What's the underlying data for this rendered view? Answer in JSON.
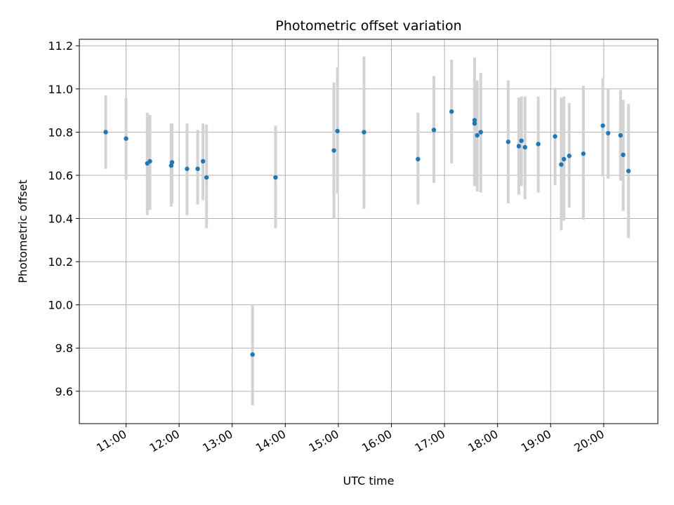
{
  "chart_data": {
    "type": "scatter",
    "title": "Photometric offset variation",
    "xlabel": "UTC time",
    "ylabel": "Photometric offset",
    "grid": true,
    "x_tick_labels": [
      "11:00",
      "12:00",
      "13:00",
      "14:00",
      "15:00",
      "16:00",
      "17:00",
      "18:00",
      "19:00",
      "20:00"
    ],
    "x_tick_hours": [
      11,
      12,
      13,
      14,
      15,
      16,
      17,
      18,
      19,
      20
    ],
    "xlim_hours": [
      10.12,
      21.02
    ],
    "y_ticks": [
      9.6,
      9.8,
      10.0,
      10.2,
      10.4,
      10.6,
      10.8,
      11.0,
      11.2
    ],
    "y_tick_labels": [
      "9.6",
      "9.8",
      "10.0",
      "10.2",
      "10.4",
      "10.6",
      "10.8",
      "11.0",
      "11.2"
    ],
    "ylim": [
      9.45,
      11.23
    ],
    "colors": {
      "points": "#1f77b4",
      "errorbars": "#d3d3d3",
      "grid": "#b0b0b0"
    },
    "points": [
      {
        "t": "10:37",
        "y": 10.8,
        "lo": 10.63,
        "hi": 10.97
      },
      {
        "t": "11:00",
        "y": 10.77,
        "lo": 10.58,
        "hi": 10.96
      },
      {
        "t": "11:24",
        "y": 10.655,
        "lo": 10.415,
        "hi": 10.89
      },
      {
        "t": "11:27",
        "y": 10.665,
        "lo": 10.44,
        "hi": 10.88
      },
      {
        "t": "11:51",
        "y": 10.645,
        "lo": 10.455,
        "hi": 10.84
      },
      {
        "t": "11:52",
        "y": 10.66,
        "lo": 10.47,
        "hi": 10.84
      },
      {
        "t": "12:09",
        "y": 10.63,
        "lo": 10.415,
        "hi": 10.84
      },
      {
        "t": "12:21",
        "y": 10.63,
        "lo": 10.465,
        "hi": 10.81
      },
      {
        "t": "12:27",
        "y": 10.665,
        "lo": 10.485,
        "hi": 10.84
      },
      {
        "t": "12:31",
        "y": 10.59,
        "lo": 10.355,
        "hi": 10.835
      },
      {
        "t": "13:23",
        "y": 9.77,
        "lo": 9.535,
        "hi": 10.0
      },
      {
        "t": "13:49",
        "y": 10.59,
        "lo": 10.355,
        "hi": 10.83
      },
      {
        "t": "14:55",
        "y": 10.715,
        "lo": 10.4,
        "hi": 11.03
      },
      {
        "t": "14:59",
        "y": 10.805,
        "lo": 10.515,
        "hi": 11.1
      },
      {
        "t": "15:29",
        "y": 10.8,
        "lo": 10.445,
        "hi": 11.15
      },
      {
        "t": "16:30",
        "y": 10.675,
        "lo": 10.465,
        "hi": 10.89
      },
      {
        "t": "16:48",
        "y": 10.81,
        "lo": 10.565,
        "hi": 11.06
      },
      {
        "t": "17:08",
        "y": 10.895,
        "lo": 10.655,
        "hi": 11.135
      },
      {
        "t": "17:34",
        "y": 10.855,
        "lo": 10.56,
        "hi": 11.145
      },
      {
        "t": "17:34",
        "y": 10.84,
        "lo": 10.55,
        "hi": 11.1
      },
      {
        "t": "17:37",
        "y": 10.785,
        "lo": 10.525,
        "hi": 11.04
      },
      {
        "t": "17:41",
        "y": 10.8,
        "lo": 10.52,
        "hi": 11.075
      },
      {
        "t": "18:12",
        "y": 10.755,
        "lo": 10.47,
        "hi": 11.04
      },
      {
        "t": "18:24",
        "y": 10.735,
        "lo": 10.51,
        "hi": 10.96
      },
      {
        "t": "18:27",
        "y": 10.76,
        "lo": 10.55,
        "hi": 10.965
      },
      {
        "t": "18:31",
        "y": 10.73,
        "lo": 10.49,
        "hi": 10.965
      },
      {
        "t": "18:46",
        "y": 10.745,
        "lo": 10.52,
        "hi": 10.965
      },
      {
        "t": "19:05",
        "y": 10.78,
        "lo": 10.555,
        "hi": 11.005
      },
      {
        "t": "19:12",
        "y": 10.65,
        "lo": 10.345,
        "hi": 10.96
      },
      {
        "t": "19:15",
        "y": 10.675,
        "lo": 10.39,
        "hi": 10.965
      },
      {
        "t": "19:21",
        "y": 10.69,
        "lo": 10.45,
        "hi": 10.935
      },
      {
        "t": "19:37",
        "y": 10.7,
        "lo": 10.395,
        "hi": 11.015
      },
      {
        "t": "19:59",
        "y": 10.83,
        "lo": 10.595,
        "hi": 11.05
      },
      {
        "t": "20:05",
        "y": 10.795,
        "lo": 10.585,
        "hi": 11.0
      },
      {
        "t": "20:19",
        "y": 10.785,
        "lo": 10.575,
        "hi": 10.995
      },
      {
        "t": "20:22",
        "y": 10.695,
        "lo": 10.435,
        "hi": 10.95
      },
      {
        "t": "20:28",
        "y": 10.62,
        "lo": 10.31,
        "hi": 10.93
      }
    ]
  }
}
